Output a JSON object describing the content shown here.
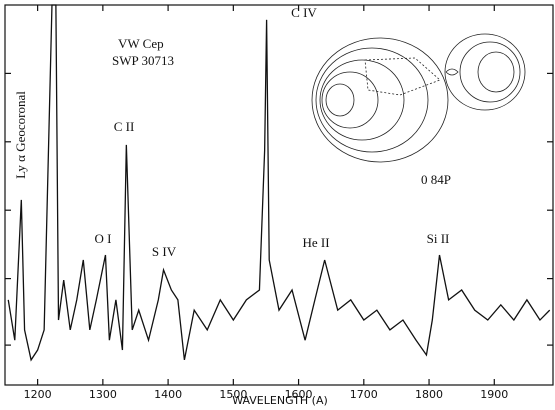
{
  "chart_data": {
    "type": "line",
    "x_label": "WAVELENGTH (A)",
    "annotations": {
      "star": "VW Cep",
      "camera": "SWP 30713",
      "lya": "Ly α  Geocoronal",
      "c2": "C II",
      "o1": "O I",
      "s4": "S IV",
      "c4": "C IV",
      "he2": "He II",
      "si2": "Si II",
      "phase": "0 84P"
    },
    "x": [
      1155,
      1165,
      1175,
      1180,
      1190,
      1200,
      1210,
      1222,
      1228,
      1232,
      1240,
      1250,
      1260,
      1270,
      1280,
      1290,
      1304,
      1310,
      1320,
      1330,
      1336,
      1345,
      1355,
      1370,
      1385,
      1393,
      1405,
      1415,
      1425,
      1440,
      1460,
      1480,
      1500,
      1520,
      1540,
      1548,
      1551,
      1555,
      1570,
      1590,
      1610,
      1625,
      1640,
      1660,
      1680,
      1700,
      1720,
      1740,
      1760,
      1780,
      1796,
      1805,
      1816,
      1830,
      1850,
      1870,
      1890,
      1910,
      1930,
      1950,
      1970,
      1985
    ],
    "series": [
      {
        "color": "#111111",
        "values": [
          22.4,
          11.8,
          48.7,
          14.5,
          6.6,
          9.2,
          14.5,
          100,
          100,
          17.1,
          27.6,
          14.5,
          22.4,
          32.9,
          14.5,
          22.4,
          34.2,
          11.8,
          22.4,
          9.2,
          63.2,
          14.5,
          19.7,
          11.8,
          22.4,
          30.3,
          25,
          22.4,
          6.6,
          19.7,
          14.5,
          22.4,
          17.1,
          22.4,
          25,
          61.8,
          96.1,
          32.9,
          19.7,
          25,
          11.8,
          22.4,
          32.9,
          19.7,
          22.4,
          17.1,
          19.7,
          14.5,
          17.1,
          11.8,
          7.9,
          17.1,
          34.2,
          22.4,
          25,
          19.7,
          17.1,
          21.1,
          17.1,
          22.4,
          17.1,
          19.7
        ]
      }
    ],
    "xlim": [
      1150,
      1990
    ],
    "xticks": [
      1200,
      1300,
      1400,
      1500,
      1600,
      1700,
      1800,
      1900
    ],
    "ylim": [
      0,
      100
    ],
    "yticks": [
      10.5,
      28,
      46,
      64,
      82
    ]
  }
}
